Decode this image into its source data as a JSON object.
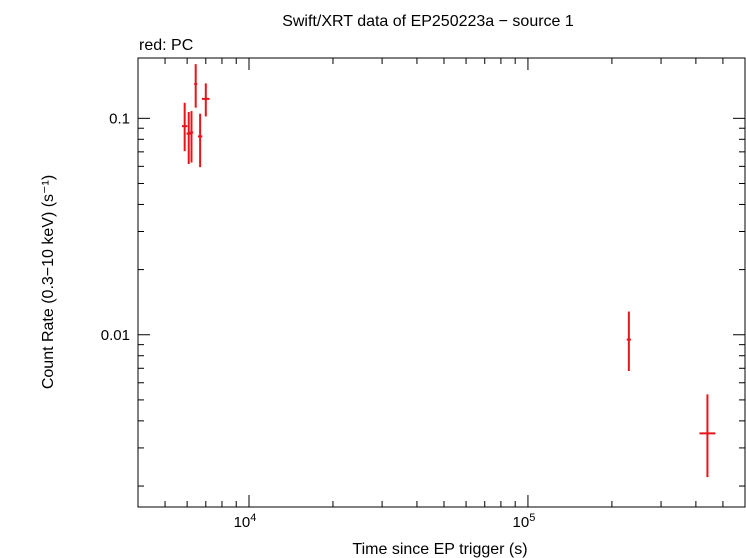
{
  "chart_data": {
    "type": "scatter",
    "title": "Swift/XRT data of EP250223a − source 1",
    "subtitle": "red: PC",
    "xlabel": "Time since EP trigger (s)",
    "ylabel": "Count Rate (0.3−10 keV) (s⁻¹)",
    "xscale": "log",
    "yscale": "log",
    "xlim": [
      4000,
      600000
    ],
    "ylim": [
      0.0016,
      0.19
    ],
    "x_tick_labels": [
      {
        "value": 10000,
        "base": "10",
        "exp": "4"
      },
      {
        "value": 100000,
        "base": "10",
        "exp": "5"
      }
    ],
    "y_tick_labels": [
      {
        "value": 0.1,
        "label": "0.1"
      },
      {
        "value": 0.01,
        "label": "0.01"
      }
    ],
    "grid": false,
    "colors": {
      "series": "#e8141a",
      "axes": "#000000"
    },
    "series": [
      {
        "points": [
          {
            "x": 5880,
            "xerr_lo": 130,
            "xerr_hi": 130,
            "y": 0.092,
            "y_lo": 0.0705,
            "y_hi": 0.118
          },
          {
            "x": 6080,
            "xerr_lo": 110,
            "xerr_hi": 110,
            "y": 0.085,
            "y_lo": 0.0615,
            "y_hi": 0.107
          },
          {
            "x": 6220,
            "xerr_lo": 90,
            "xerr_hi": 90,
            "y": 0.086,
            "y_lo": 0.0625,
            "y_hi": 0.108
          },
          {
            "x": 6440,
            "xerr_lo": 80,
            "xerr_hi": 80,
            "y": 0.144,
            "y_lo": 0.112,
            "y_hi": 0.178
          },
          {
            "x": 6680,
            "xerr_lo": 120,
            "xerr_hi": 120,
            "y": 0.0825,
            "y_lo": 0.0595,
            "y_hi": 0.105
          },
          {
            "x": 7000,
            "xerr_lo": 220,
            "xerr_hi": 220,
            "y": 0.123,
            "y_lo": 0.102,
            "y_hi": 0.145
          },
          {
            "x": 230000,
            "xerr_lo": 4000,
            "xerr_hi": 4000,
            "y": 0.0095,
            "y_lo": 0.0068,
            "y_hi": 0.0128
          },
          {
            "x": 440000,
            "xerr_lo": 28000,
            "xerr_hi": 30000,
            "y": 0.0035,
            "y_lo": 0.0022,
            "y_hi": 0.0053
          }
        ]
      }
    ]
  }
}
